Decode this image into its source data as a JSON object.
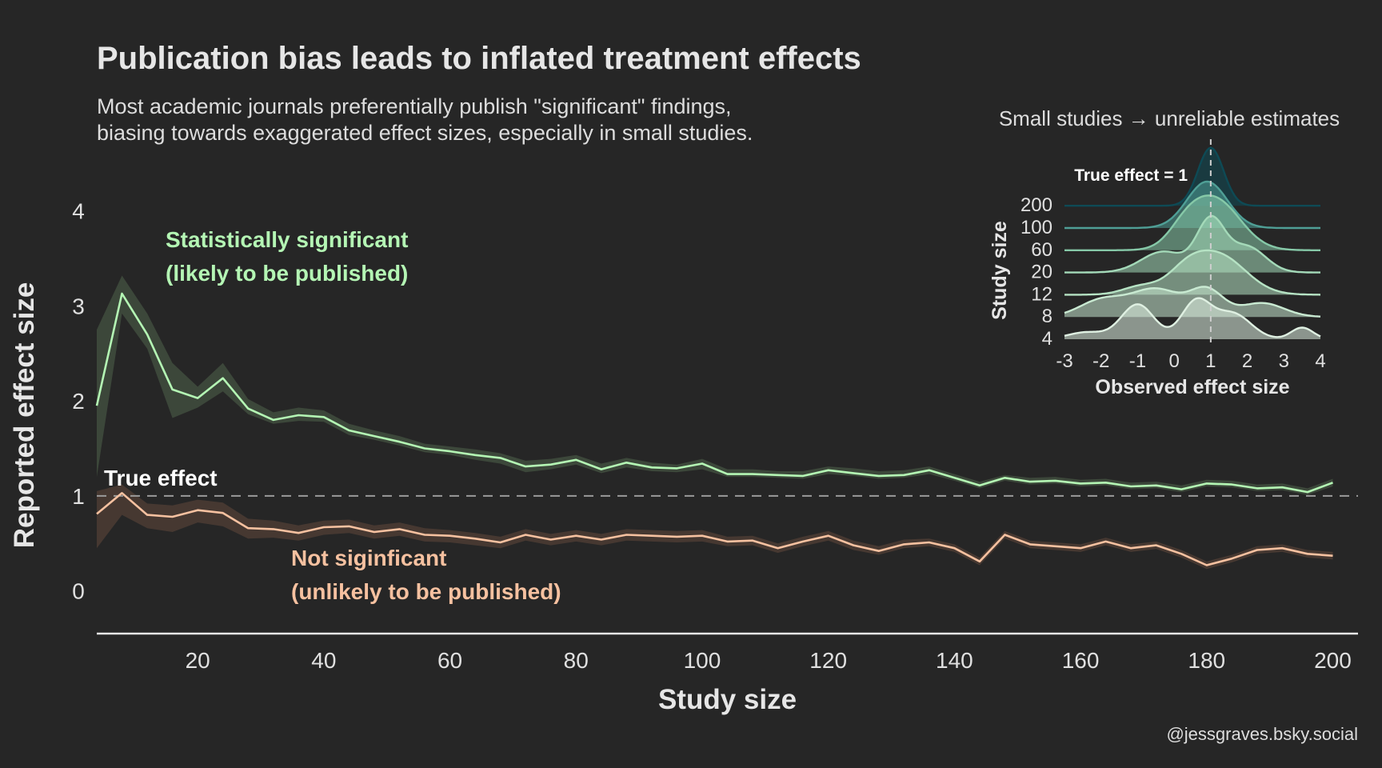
{
  "colors": {
    "background": "#262626",
    "significant": "#b4f6b4",
    "not_significant": "#f6c1a0",
    "text": "#e6e6e6",
    "true_effect_line": "#9a9a9a"
  },
  "chart_data": [
    {
      "type": "line",
      "title": "Publication bias leads to inflated treatment effects",
      "subtitle": [
        "Most academic journals preferentially publish \"significant\" findings,",
        "biasing towards exaggerated effect sizes, especially in small studies."
      ],
      "xlabel": "Study size",
      "ylabel": "Reported effect size",
      "xlim": [
        4,
        204
      ],
      "ylim": [
        -0.45,
        4.2
      ],
      "x_ticks": [
        20,
        40,
        60,
        80,
        100,
        120,
        140,
        160,
        180,
        200
      ],
      "y_ticks": [
        0,
        1,
        2,
        3,
        4
      ],
      "grid": false,
      "reference_line": {
        "y": 1,
        "label": "True effect",
        "style": "dashed"
      },
      "x": [
        4,
        8,
        12,
        16,
        20,
        24,
        28,
        32,
        36,
        40,
        44,
        48,
        52,
        56,
        60,
        64,
        68,
        72,
        76,
        80,
        84,
        88,
        92,
        96,
        100,
        104,
        108,
        112,
        116,
        120,
        124,
        128,
        132,
        136,
        140,
        144,
        148,
        152,
        156,
        160,
        164,
        168,
        172,
        176,
        180,
        184,
        188,
        192,
        196,
        200
      ],
      "series": [
        {
          "annotation": [
            "Statistically significant",
            "(likely to be published)"
          ],
          "color": "#b4f6b4",
          "values": [
            1.95,
            3.13,
            2.7,
            2.12,
            2.03,
            2.24,
            1.92,
            1.8,
            1.85,
            1.83,
            1.69,
            1.63,
            1.57,
            1.5,
            1.47,
            1.43,
            1.4,
            1.31,
            1.33,
            1.38,
            1.28,
            1.35,
            1.3,
            1.29,
            1.34,
            1.23,
            1.23,
            1.22,
            1.21,
            1.27,
            1.24,
            1.21,
            1.22,
            1.27,
            1.19,
            1.11,
            1.19,
            1.15,
            1.16,
            1.13,
            1.14,
            1.1,
            1.11,
            1.07,
            1.13,
            1.12,
            1.08,
            1.09,
            1.04,
            1.14
          ],
          "lower": [
            1.2,
            2.92,
            2.55,
            1.82,
            1.93,
            2.1,
            1.86,
            1.76,
            1.79,
            1.78,
            1.64,
            1.59,
            1.53,
            1.46,
            1.43,
            1.38,
            1.34,
            1.25,
            1.28,
            1.33,
            1.24,
            1.3,
            1.26,
            1.25,
            1.28,
            1.2,
            1.2,
            1.19,
            1.18,
            1.23,
            1.21,
            1.18,
            1.19,
            1.23,
            1.16,
            1.08,
            1.16,
            1.12,
            1.13,
            1.1,
            1.11,
            1.07,
            1.08,
            1.04,
            1.1,
            1.09,
            1.05,
            1.06,
            1.01,
            1.1
          ],
          "upper": [
            2.75,
            3.32,
            2.92,
            2.4,
            2.15,
            2.4,
            2.02,
            1.88,
            1.93,
            1.9,
            1.76,
            1.69,
            1.63,
            1.55,
            1.52,
            1.49,
            1.45,
            1.37,
            1.39,
            1.43,
            1.34,
            1.4,
            1.35,
            1.33,
            1.39,
            1.28,
            1.28,
            1.26,
            1.26,
            1.31,
            1.29,
            1.26,
            1.27,
            1.31,
            1.23,
            1.15,
            1.22,
            1.19,
            1.2,
            1.17,
            1.18,
            1.14,
            1.15,
            1.11,
            1.17,
            1.16,
            1.12,
            1.13,
            1.08,
            1.18
          ]
        },
        {
          "annotation": [
            "Not siginficant",
            "(unlikely to be published)"
          ],
          "color": "#f6c1a0",
          "values": [
            0.81,
            1.03,
            0.8,
            0.78,
            0.85,
            0.82,
            0.66,
            0.65,
            0.61,
            0.67,
            0.68,
            0.62,
            0.65,
            0.59,
            0.58,
            0.55,
            0.51,
            0.59,
            0.54,
            0.58,
            0.54,
            0.59,
            0.58,
            0.57,
            0.58,
            0.52,
            0.53,
            0.45,
            0.52,
            0.58,
            0.48,
            0.42,
            0.49,
            0.51,
            0.45,
            0.31,
            0.59,
            0.49,
            0.47,
            0.45,
            0.52,
            0.45,
            0.48,
            0.39,
            0.27,
            0.34,
            0.43,
            0.45,
            0.39,
            0.37
          ],
          "lower": [
            0.45,
            0.8,
            0.66,
            0.62,
            0.72,
            0.68,
            0.55,
            0.56,
            0.53,
            0.59,
            0.61,
            0.55,
            0.58,
            0.52,
            0.51,
            0.48,
            0.45,
            0.53,
            0.48,
            0.52,
            0.48,
            0.53,
            0.52,
            0.51,
            0.52,
            0.47,
            0.48,
            0.4,
            0.47,
            0.53,
            0.43,
            0.38,
            0.45,
            0.47,
            0.41,
            0.27,
            0.55,
            0.45,
            0.43,
            0.41,
            0.48,
            0.41,
            0.44,
            0.35,
            0.23,
            0.3,
            0.39,
            0.41,
            0.35,
            0.33
          ],
          "upper": [
            1.05,
            1.12,
            0.92,
            0.9,
            0.96,
            0.93,
            0.76,
            0.74,
            0.69,
            0.74,
            0.75,
            0.69,
            0.72,
            0.66,
            0.64,
            0.61,
            0.57,
            0.65,
            0.6,
            0.64,
            0.6,
            0.65,
            0.64,
            0.63,
            0.64,
            0.57,
            0.58,
            0.5,
            0.57,
            0.63,
            0.53,
            0.47,
            0.54,
            0.55,
            0.49,
            0.35,
            0.63,
            0.53,
            0.51,
            0.49,
            0.56,
            0.49,
            0.52,
            0.43,
            0.31,
            0.38,
            0.47,
            0.49,
            0.43,
            0.41
          ]
        }
      ]
    },
    {
      "type": "ridgeline",
      "title": "Small studies → unreliable estimates",
      "xlabel": "Observed effect size",
      "ylabel": "Study size",
      "xlim": [
        -3,
        4
      ],
      "x_ticks": [
        "-3",
        "-2",
        "-1",
        "0",
        "1",
        "2",
        "3",
        "4"
      ],
      "reference_line": {
        "x": 1,
        "label": "True effect = 1",
        "style": "dashed"
      },
      "grid": false,
      "ridges": [
        {
          "label": "4",
          "color": "#dff0e2",
          "peaks": [
            [
              -1,
              0.75,
              0.45
            ],
            [
              0.6,
              0.8,
              0.4
            ],
            [
              1.6,
              0.55,
              0.5
            ],
            [
              3.5,
              0.25,
              0.3
            ],
            [
              -2.4,
              0.15,
              0.5
            ]
          ]
        },
        {
          "label": "8",
          "color": "#c9ead2",
          "peaks": [
            [
              -0.5,
              0.6,
              0.7
            ],
            [
              0.9,
              0.55,
              0.45
            ],
            [
              -2,
              0.35,
              0.6
            ],
            [
              2.4,
              0.3,
              0.6
            ]
          ]
        },
        {
          "label": "12",
          "color": "#b6e3c4",
          "peaks": [
            [
              1.2,
              0.85,
              0.75
            ],
            [
              0.3,
              0.35,
              0.5
            ],
            [
              -0.9,
              0.18,
              0.5
            ]
          ]
        },
        {
          "label": "20",
          "color": "#a4dab9",
          "peaks": [
            [
              1.0,
              1.1,
              0.38
            ],
            [
              -0.3,
              0.45,
              0.6
            ],
            [
              2.0,
              0.55,
              0.5
            ]
          ]
        },
        {
          "label": "60",
          "color": "#86c9a8",
          "peaks": [
            [
              1.1,
              1.1,
              0.7
            ],
            [
              0.3,
              0.3,
              0.45
            ]
          ]
        },
        {
          "label": "100",
          "color": "#4f9f96",
          "peaks": [
            [
              0.9,
              1.0,
              0.55
            ]
          ]
        },
        {
          "label": "200",
          "color": "#0e4a55",
          "peaks": [
            [
              1.0,
              1.25,
              0.35
            ]
          ]
        }
      ]
    }
  ],
  "caption": "@jessgraves.bsky.social"
}
